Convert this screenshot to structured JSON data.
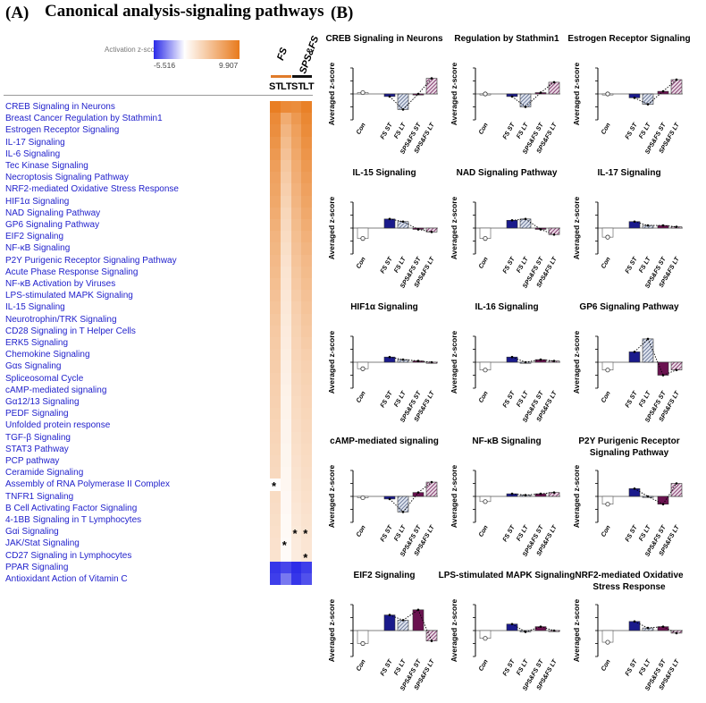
{
  "panel_a": {
    "letter": "(A)",
    "title": "Canonical analysis-signaling pathways",
    "scale": {
      "label": "Activation z-score",
      "min": "-5.516",
      "max": "9.907",
      "min_value": -5.516,
      "max_value": 9.907
    },
    "groups": [
      {
        "label": "FS",
        "color": "#e07b2a"
      },
      {
        "label": "SPS&FS",
        "color": "#111111"
      }
    ],
    "columns": [
      "ST",
      "LT",
      "ST",
      "LT"
    ]
  },
  "panel_b": {
    "letter": "(B)"
  },
  "chart_data": [
    {
      "type": "heatmap",
      "legend_label": "Activation z-score",
      "range": [
        -5.516,
        9.907
      ],
      "columns": [
        "FS ST",
        "FS LT",
        "SPS&FS ST",
        "SPS&FS LT"
      ],
      "rows": [
        {
          "name": "CREB Signaling in Neurons",
          "values": [
            9.6,
            8.7,
            8.5,
            9.4
          ],
          "stars": []
        },
        {
          "name": "Breast Cancer Regulation by Stathmin1",
          "values": [
            8.7,
            6.2,
            7.6,
            8.9
          ],
          "stars": []
        },
        {
          "name": "Estrogen Receptor Signaling",
          "values": [
            8.4,
            5.5,
            7.1,
            8.6
          ],
          "stars": []
        },
        {
          "name": "IL-17 Signaling",
          "values": [
            8.0,
            5.0,
            6.8,
            8.2
          ],
          "stars": []
        },
        {
          "name": "IL-6 Signaling",
          "values": [
            7.6,
            4.6,
            6.5,
            7.9
          ],
          "stars": []
        },
        {
          "name": "Tec Kinase Signaling",
          "values": [
            7.2,
            4.2,
            6.2,
            7.6
          ],
          "stars": []
        },
        {
          "name": "Necroptosis Signaling Pathway",
          "values": [
            6.9,
            3.9,
            6.0,
            7.3
          ],
          "stars": []
        },
        {
          "name": "NRF2-mediated Oxidative Stress Response",
          "values": [
            6.7,
            3.6,
            5.7,
            7.0
          ],
          "stars": []
        },
        {
          "name": "HIF1α Signaling",
          "values": [
            6.5,
            3.3,
            5.5,
            6.7
          ],
          "stars": []
        },
        {
          "name": "NAD Signaling Pathway",
          "values": [
            6.2,
            3.0,
            5.2,
            6.4
          ],
          "stars": []
        },
        {
          "name": "GP6 Signaling Pathway",
          "values": [
            5.9,
            2.8,
            5.0,
            6.1
          ],
          "stars": []
        },
        {
          "name": "EIF2 Signaling",
          "values": [
            5.6,
            2.6,
            4.8,
            5.8
          ],
          "stars": []
        },
        {
          "name": "NF-κB Signaling",
          "values": [
            5.4,
            2.4,
            4.6,
            5.5
          ],
          "stars": []
        },
        {
          "name": "P2Y Purigenic Receptor Signaling Pathway",
          "values": [
            5.2,
            2.2,
            4.4,
            5.2
          ],
          "stars": []
        },
        {
          "name": "Acute Phase Response Signaling",
          "values": [
            5.0,
            2.0,
            4.2,
            5.0
          ],
          "stars": []
        },
        {
          "name": "NF-κB Activation by Viruses",
          "values": [
            4.8,
            1.9,
            4.0,
            4.8
          ],
          "stars": []
        },
        {
          "name": "LPS-stimulated MAPK Signaling",
          "values": [
            4.6,
            1.8,
            3.8,
            4.6
          ],
          "stars": []
        },
        {
          "name": "IL-15 Signaling",
          "values": [
            4.4,
            1.7,
            3.6,
            4.4
          ],
          "stars": []
        },
        {
          "name": "Neurotrophin/TRK Signaling",
          "values": [
            4.2,
            1.6,
            3.4,
            4.2
          ],
          "stars": []
        },
        {
          "name": "CD28 Signaling in T Helper Cells",
          "values": [
            4.0,
            1.5,
            3.3,
            4.0
          ],
          "stars": []
        },
        {
          "name": "ERK5 Signaling",
          "values": [
            3.9,
            1.4,
            3.2,
            3.8
          ],
          "stars": []
        },
        {
          "name": "Chemokine Signaling",
          "values": [
            3.8,
            1.3,
            3.1,
            3.6
          ],
          "stars": []
        },
        {
          "name": "Gαs Signaling",
          "values": [
            3.7,
            1.2,
            3.0,
            3.4
          ],
          "stars": []
        },
        {
          "name": "Spliceosomal Cycle",
          "values": [
            3.6,
            1.1,
            2.9,
            3.3
          ],
          "stars": []
        },
        {
          "name": "cAMP-mediated signaling",
          "values": [
            3.5,
            1.0,
            2.8,
            3.2
          ],
          "stars": []
        },
        {
          "name": "Gα12/13 Signaling",
          "values": [
            3.4,
            0.9,
            2.7,
            3.1
          ],
          "stars": []
        },
        {
          "name": "PEDF Signaling",
          "values": [
            3.3,
            0.9,
            2.6,
            3.0
          ],
          "stars": []
        },
        {
          "name": "Unfolded protein response",
          "values": [
            3.2,
            0.8,
            2.5,
            2.9
          ],
          "stars": []
        },
        {
          "name": "TGF-β Signaling",
          "values": [
            3.1,
            0.8,
            2.4,
            2.8
          ],
          "stars": []
        },
        {
          "name": "STAT3 Pathway",
          "values": [
            3.0,
            0.7,
            2.3,
            2.7
          ],
          "stars": []
        },
        {
          "name": "PCP pathway",
          "values": [
            2.9,
            0.7,
            2.2,
            2.6
          ],
          "stars": []
        },
        {
          "name": "Ceramide Signaling",
          "values": [
            2.8,
            0.6,
            2.1,
            2.5
          ],
          "stars": []
        },
        {
          "name": "Assembly of RNA Polymerase II Complex",
          "values": [
            0.1,
            0.6,
            2.0,
            2.4
          ],
          "stars": [
            0
          ]
        },
        {
          "name": "TNFR1 Signaling",
          "values": [
            2.6,
            0.5,
            1.9,
            2.3
          ],
          "stars": []
        },
        {
          "name": "B Cell Activating Factor Signaling",
          "values": [
            2.5,
            0.5,
            1.8,
            2.2
          ],
          "stars": []
        },
        {
          "name": "4-1BB Signaling in T Lymphocytes",
          "values": [
            2.4,
            0.4,
            1.7,
            2.1
          ],
          "stars": []
        },
        {
          "name": "Gαi Signaling",
          "values": [
            2.3,
            0.4,
            1.6,
            2.0
          ],
          "stars": [
            2,
            3
          ]
        },
        {
          "name": "JAK/Stat Signaling",
          "values": [
            2.2,
            0.3,
            1.5,
            1.9
          ],
          "stars": [
            1
          ]
        },
        {
          "name": "CD27 Signaling in Lymphocytes",
          "values": [
            2.1,
            0.3,
            1.4,
            1.8
          ],
          "stars": [
            3
          ]
        },
        {
          "name": "PPAR Signaling",
          "values": [
            -5.2,
            -4.8,
            -5.4,
            -5.0
          ],
          "stars": []
        },
        {
          "name": "Antioxidant Action of Vitamin C",
          "values": [
            -5.0,
            -3.5,
            -5.2,
            -4.5
          ],
          "stars": []
        }
      ]
    },
    {
      "type": "bar",
      "title": [
        "CREB Signaling in Neurons"
      ],
      "categories": [
        "Con",
        "FS ST",
        "FS LT",
        "SPS&FS ST",
        "SPS&FS LT"
      ],
      "values": [
        0.05,
        -0.1,
        -0.6,
        0.0,
        0.6
      ],
      "ylabel": "Averaged z-score"
    },
    {
      "type": "bar",
      "title": [
        "Regulation by Stathmin1"
      ],
      "categories": [
        "Con",
        "FS ST",
        "FS LT",
        "SPS&FS ST",
        "SPS&FS LT"
      ],
      "values": [
        0.0,
        -0.1,
        -0.5,
        0.05,
        0.45
      ],
      "ylabel": "Averaged z-score"
    },
    {
      "type": "bar",
      "title": [
        "Estrogen Receptor Signaling"
      ],
      "categories": [
        "Con",
        "FS ST",
        "FS LT",
        "SPS&FS ST",
        "SPS&FS LT"
      ],
      "values": [
        0.0,
        -0.15,
        -0.4,
        0.1,
        0.55
      ],
      "ylabel": "Averaged z-score"
    },
    {
      "type": "bar",
      "title": [
        "IL-15 Signaling"
      ],
      "categories": [
        "Con",
        "FS ST",
        "FS LT",
        "SPS&FS ST",
        "SPS&FS LT"
      ],
      "values": [
        -0.4,
        0.35,
        0.25,
        -0.05,
        -0.15
      ],
      "ylabel": "Averaged z-score"
    },
    {
      "type": "bar",
      "title": [
        "NAD Signaling Pathway"
      ],
      "categories": [
        "Con",
        "FS ST",
        "FS LT",
        "SPS&FS ST",
        "SPS&FS LT"
      ],
      "values": [
        -0.4,
        0.3,
        0.35,
        -0.05,
        -0.25
      ],
      "ylabel": "Averaged z-score"
    },
    {
      "type": "bar",
      "title": [
        "IL-17 Signaling"
      ],
      "categories": [
        "Con",
        "FS ST",
        "FS LT",
        "SPS&FS ST",
        "SPS&FS LT"
      ],
      "values": [
        -0.35,
        0.25,
        0.1,
        0.1,
        0.05
      ],
      "ylabel": "Averaged z-score"
    },
    {
      "type": "bar",
      "title": [
        "HIF1α Signaling"
      ],
      "categories": [
        "Con",
        "FS ST",
        "FS LT",
        "SPS&FS ST",
        "SPS&FS LT"
      ],
      "values": [
        -0.25,
        0.2,
        0.1,
        0.05,
        0.0
      ],
      "ylabel": "Averaged z-score"
    },
    {
      "type": "bar",
      "title": [
        "IL-16 Signaling"
      ],
      "categories": [
        "Con",
        "FS ST",
        "FS LT",
        "SPS&FS ST",
        "SPS&FS LT"
      ],
      "values": [
        -0.3,
        0.2,
        0.0,
        0.1,
        0.05
      ],
      "ylabel": "Averaged z-score"
    },
    {
      "type": "bar",
      "title": [
        "GP6 Signaling Pathway"
      ],
      "categories": [
        "Con",
        "FS ST",
        "FS LT",
        "SPS&FS ST",
        "SPS&FS LT"
      ],
      "values": [
        -0.3,
        0.4,
        0.9,
        -0.5,
        -0.3
      ],
      "ylabel": "Averaged z-score"
    },
    {
      "type": "bar",
      "title": [
        "cAMP-mediated signaling"
      ],
      "categories": [
        "Con",
        "FS ST",
        "FS LT",
        "SPS&FS ST",
        "SPS&FS LT"
      ],
      "values": [
        -0.05,
        -0.1,
        -0.6,
        0.15,
        0.55
      ],
      "ylabel": "Averaged z-score"
    },
    {
      "type": "bar",
      "title": [
        "NF-κB Signaling"
      ],
      "categories": [
        "Con",
        "FS ST",
        "FS LT",
        "SPS&FS ST",
        "SPS&FS LT"
      ],
      "values": [
        -0.2,
        0.1,
        0.05,
        0.1,
        0.15
      ],
      "ylabel": "Averaged z-score"
    },
    {
      "type": "bar",
      "title": [
        "P2Y Purigenic Receptor",
        "Signaling Pathway"
      ],
      "categories": [
        "Con",
        "FS ST",
        "FS LT",
        "SPS&FS ST",
        "SPS&FS LT"
      ],
      "values": [
        -0.3,
        0.3,
        0.0,
        -0.3,
        0.5
      ],
      "ylabel": "Averaged z-score"
    },
    {
      "type": "bar",
      "title": [
        "EIF2 Signaling"
      ],
      "categories": [
        "Con",
        "FS ST",
        "FS LT",
        "SPS&FS ST",
        "SPS&FS LT"
      ],
      "values": [
        -0.5,
        0.6,
        0.4,
        0.8,
        -0.4
      ],
      "ylabel": "Averaged z-score"
    },
    {
      "type": "bar",
      "title": [
        "LPS-stimulated MAPK Signaling"
      ],
      "categories": [
        "Con",
        "FS ST",
        "FS LT",
        "SPS&FS ST",
        "SPS&FS LT"
      ],
      "values": [
        -0.3,
        0.25,
        -0.05,
        0.15,
        0.0
      ],
      "ylabel": "Averaged z-score"
    },
    {
      "type": "bar",
      "title": [
        "NRF2-mediated Oxidative",
        "Stress Response"
      ],
      "categories": [
        "Con",
        "FS ST",
        "FS LT",
        "SPS&FS ST",
        "SPS&FS LT"
      ],
      "values": [
        -0.45,
        0.35,
        0.1,
        0.15,
        -0.1
      ],
      "ylabel": "Averaged z-score"
    }
  ]
}
